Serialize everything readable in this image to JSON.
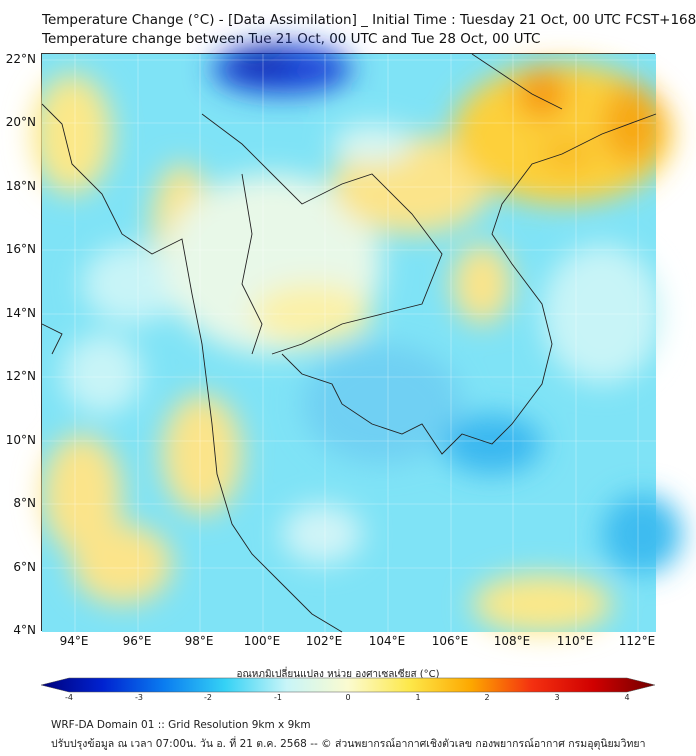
{
  "title_line1": "Temperature Change (°C) - [Data Assimilation] _ Initial Time : Tuesday 21 Oct, 00 UTC FCST+168",
  "title_line2": "Temperature change between Tue 21 Oct, 00 UTC and Tue 28 Oct, 00 UTC",
  "lat_labels": [
    "22°N",
    "20°N",
    "18°N",
    "16°N",
    "14°N",
    "12°N",
    "10°N",
    "8°N",
    "6°N",
    "4°N"
  ],
  "lon_labels": [
    "94°E",
    "96°E",
    "98°E",
    "100°E",
    "102°E",
    "104°E",
    "106°E",
    "108°E",
    "110°E",
    "112°E"
  ],
  "colorbar": {
    "title": "อุณหภูมิเปลี่ยนแปลง หน่วย องศาเซลเซียส (°C)",
    "ticks": [
      "-4",
      "-3",
      "-2",
      "-1",
      "0",
      "1",
      "2",
      "3",
      "4"
    ],
    "range": [
      -4,
      4
    ],
    "colors": [
      "#00007a",
      "#0022d0",
      "#0a7cf0",
      "#35d2f5",
      "#c8f5f8",
      "#fbfbd0",
      "#fde84a",
      "#fda800",
      "#f43010",
      "#d00000",
      "#700000"
    ]
  },
  "footer_line1": "WRF-DA Domain 01 :: Grid Resolution 9km x 9km",
  "footer_line2": "ปรับปรุงข้อมูล ณ เวลา 07:00น. วัน อ. ที่ 21 ต.ค. 2568 -- © ส่วนพยากรณ์อากาศเชิงตัวเลข กองพยากรณ์อากาศ กรมอุตุนิยมวิทยา"
}
